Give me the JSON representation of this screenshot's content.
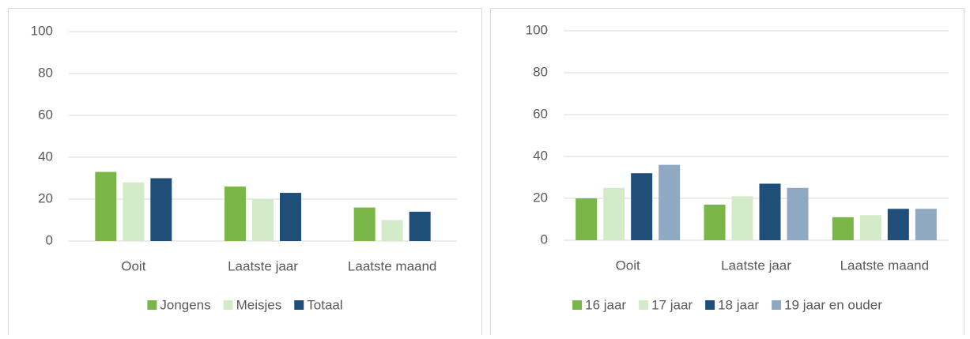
{
  "chart_data": [
    {
      "type": "bar",
      "categories": [
        "Ooit",
        "Laatste jaar",
        "Laatste maand"
      ],
      "series": [
        {
          "name": "Jongens",
          "color": "#7ab648",
          "values": [
            33,
            26,
            16
          ]
        },
        {
          "name": "Meisjes",
          "color": "#d4ebc9",
          "values": [
            28,
            20,
            10
          ]
        },
        {
          "name": "Totaal",
          "color": "#1f4e79",
          "values": [
            30,
            23,
            14
          ]
        }
      ],
      "ylim": [
        0,
        100
      ],
      "yticks": [
        0,
        20,
        40,
        60,
        80,
        100
      ],
      "grid": true,
      "legend": "bottom"
    },
    {
      "type": "bar",
      "categories": [
        "Ooit",
        "Laatste jaar",
        "Laatste maand"
      ],
      "series": [
        {
          "name": "16 jaar",
          "color": "#7ab648",
          "values": [
            20,
            17,
            11
          ]
        },
        {
          "name": "17 jaar",
          "color": "#d4ebc9",
          "values": [
            25,
            21,
            12
          ]
        },
        {
          "name": "18 jaar",
          "color": "#1f4e79",
          "values": [
            32,
            27,
            15
          ]
        },
        {
          "name": "19 jaar en ouder",
          "color": "#8fa9c2",
          "values": [
            36,
            25,
            15
          ]
        }
      ],
      "ylim": [
        0,
        100
      ],
      "yticks": [
        0,
        20,
        40,
        60,
        80,
        100
      ],
      "grid": true,
      "legend": "bottom"
    }
  ]
}
